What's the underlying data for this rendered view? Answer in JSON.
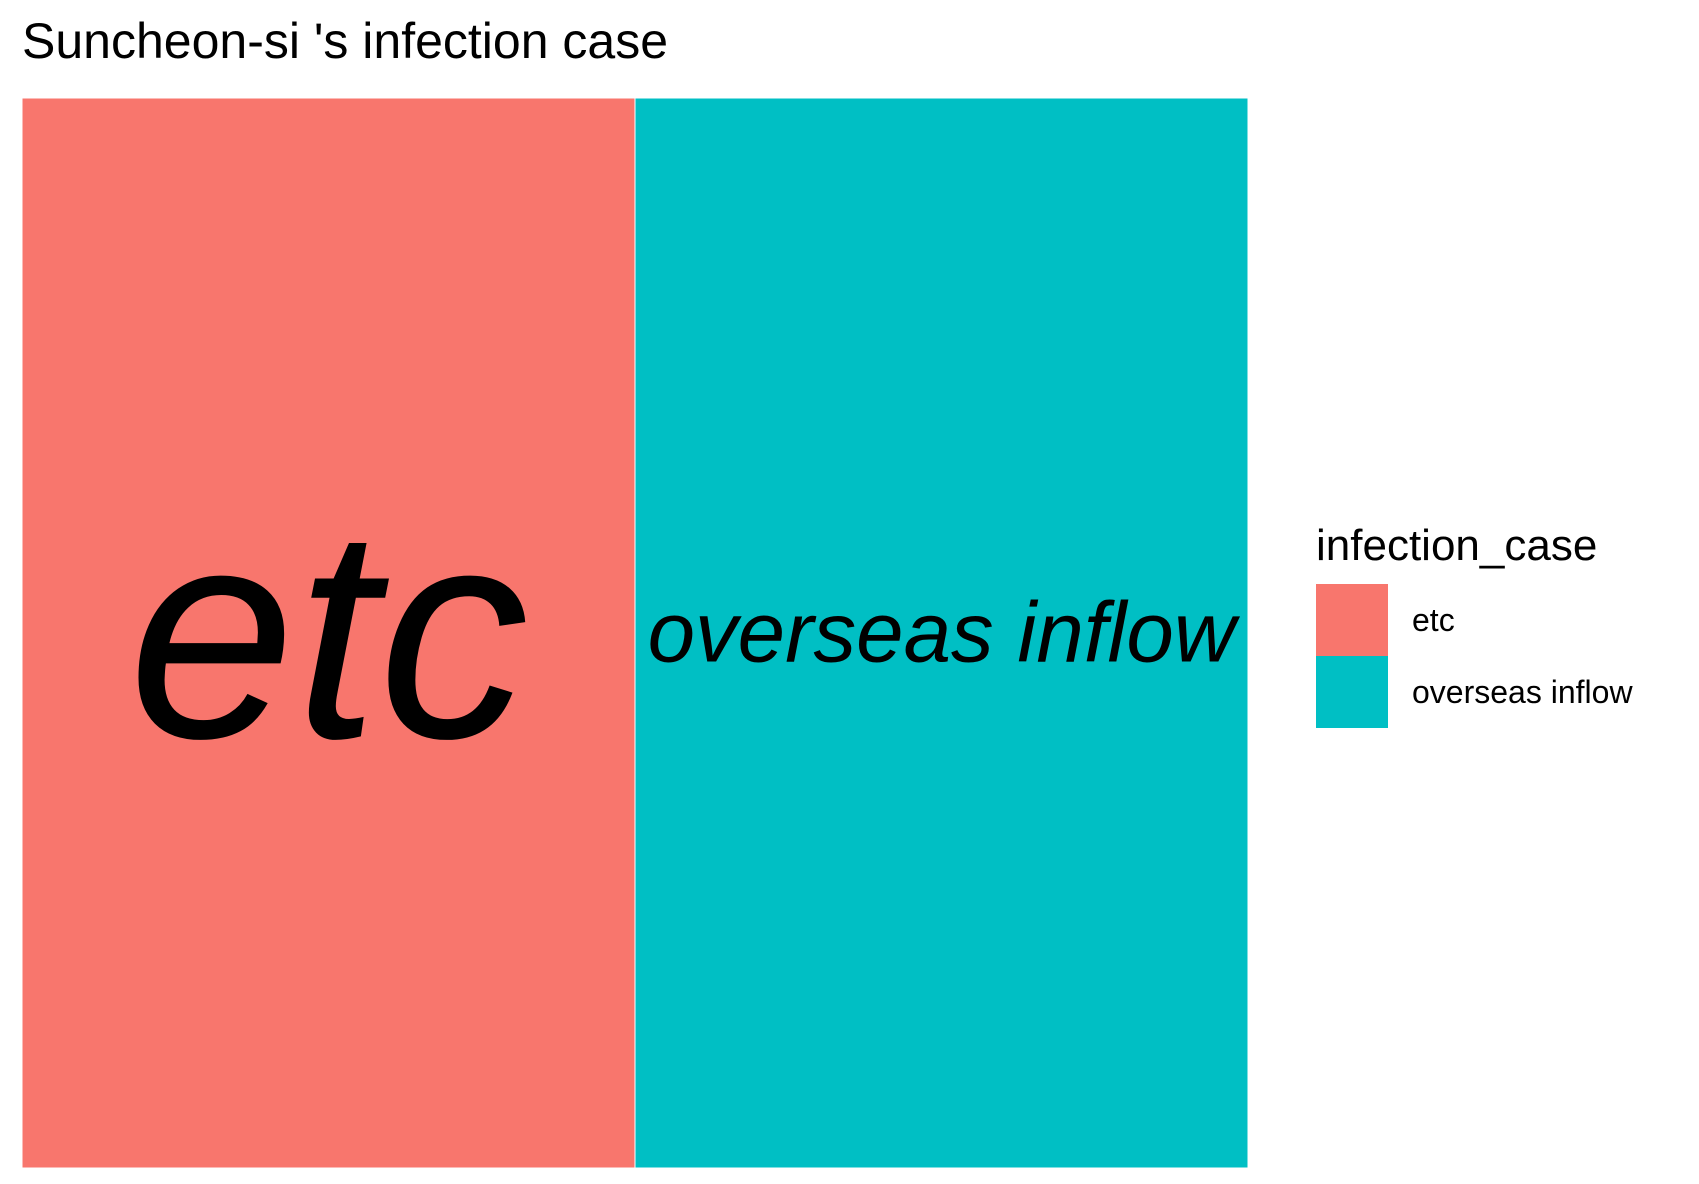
{
  "chart_data": {
    "type": "treemap",
    "title": "Suncheon-si 's infection case",
    "legend": {
      "title": "infection_case",
      "placement": "right"
    },
    "categories": [
      "etc",
      "overseas inflow"
    ],
    "values": [
      1,
      1
    ],
    "colors": [
      "#F8766D",
      "#00BFC4"
    ]
  }
}
